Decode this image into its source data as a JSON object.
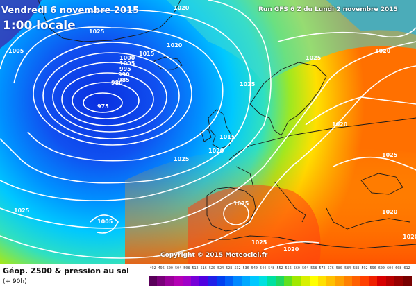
{
  "header": {
    "date": "Vendredi 6 novembre 2015",
    "hour": "1:00 locale",
    "run": "Run GFS 6 Z du Lundi 2 novembre 2015"
  },
  "copyright": "Copyright © 2015 Meteociel.fr",
  "footer": {
    "title": "Géop. Z500 & pression au sol",
    "subtitle": "(+ 90h)"
  },
  "legend": {
    "values": [
      "492",
      "496",
      "500",
      "504",
      "508",
      "512",
      "516",
      "520",
      "524",
      "528",
      "532",
      "536",
      "540",
      "544",
      "548",
      "552",
      "556",
      "560",
      "564",
      "568",
      "572",
      "576",
      "580",
      "584",
      "588",
      "592",
      "596",
      "600",
      "604",
      "608",
      "612"
    ],
    "colors": [
      "#5a005a",
      "#7a007a",
      "#9a009a",
      "#b400b4",
      "#a000c8",
      "#7800d8",
      "#5000e0",
      "#2020e8",
      "#0040f0",
      "#0060f8",
      "#0088ff",
      "#00a8ff",
      "#00c8ff",
      "#00e0e0",
      "#00e0a0",
      "#20d860",
      "#60e020",
      "#a0e800",
      "#d8f000",
      "#ffff00",
      "#ffe000",
      "#ffc000",
      "#ffa000",
      "#ff8000",
      "#ff6000",
      "#ff4000",
      "#f02000",
      "#d80000",
      "#b80000",
      "#980000",
      "#780000"
    ]
  },
  "isobars": {
    "low_center": "975",
    "labels": [
      "1020",
      "1025",
      "1005",
      "1015",
      "1020",
      "1000",
      "1005",
      "995",
      "990",
      "985",
      "980",
      "975",
      "1025",
      "1020",
      "1025",
      "1015",
      "1020",
      "1025",
      "1005",
      "1025",
      "1025",
      "1025",
      "1020",
      "1020",
      "1020",
      "1020",
      "1025",
      "1020"
    ]
  }
}
